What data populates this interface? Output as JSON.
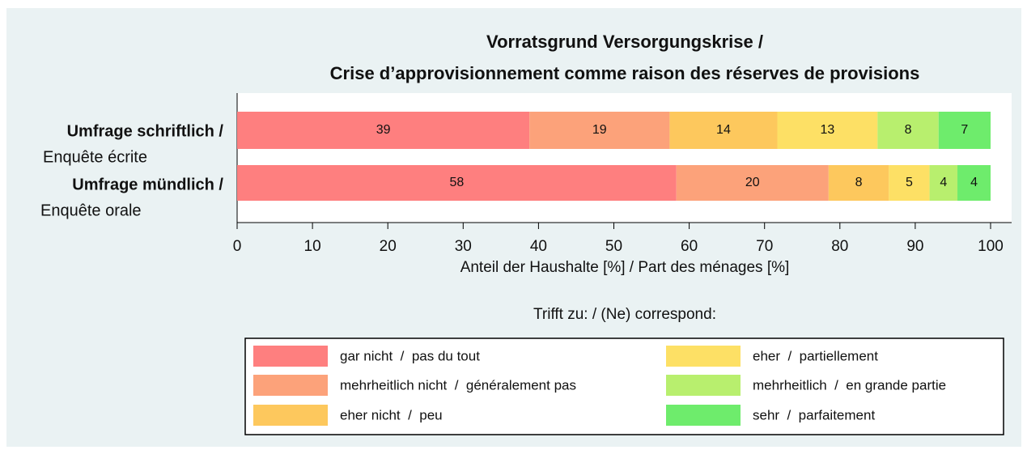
{
  "chart_data": {
    "type": "stacked_bar_horizontal",
    "title": [
      "Vorratsgrund Versorgungskrise /",
      "Crise d’approvisionnement comme raison des réserves de provisions"
    ],
    "categories": [
      [
        "Umfrage schriftlich /",
        "Enquête écrite"
      ],
      [
        "Umfrage mündlich /",
        "Enquête orale"
      ]
    ],
    "series": [
      {
        "name": "gar nicht  /  pas du tout",
        "color": "#fe7f7f",
        "values": [
          38.8,
          58.3
        ],
        "value_labels": [
          "39",
          "58"
        ]
      },
      {
        "name": "mehrheitlich nicht  /  généralement pas",
        "color": "#fca27a",
        "values": [
          18.6,
          20.2
        ],
        "value_labels": [
          "19",
          "20"
        ]
      },
      {
        "name": "eher nicht  /  peu",
        "color": "#fdc85d",
        "values": [
          14.3,
          8.0
        ],
        "value_labels": [
          "14",
          "8"
        ]
      },
      {
        "name": "eher  /  partiellement",
        "color": "#fde065",
        "values": [
          13.3,
          5.4
        ],
        "value_labels": [
          "13",
          "5"
        ]
      },
      {
        "name": "mehrheitlich  /  en grande partie",
        "color": "#b8ef6e",
        "values": [
          8.1,
          3.7
        ],
        "value_labels": [
          "8",
          "4"
        ]
      },
      {
        "name": "sehr  /  parfaitement",
        "color": "#6eec6c",
        "values": [
          6.9,
          4.4
        ],
        "value_labels": [
          "7",
          "4"
        ]
      }
    ],
    "xlabel": "Anteil der Haushalte [%]  /  Part des ménages [%]",
    "xlim": [
      0,
      100
    ],
    "xticks": [
      0,
      10,
      20,
      30,
      40,
      50,
      60,
      70,
      80,
      90,
      100
    ],
    "legend_title": "Trifft zu:  /  (Ne) correspond:",
    "legend_position": "bottom"
  }
}
